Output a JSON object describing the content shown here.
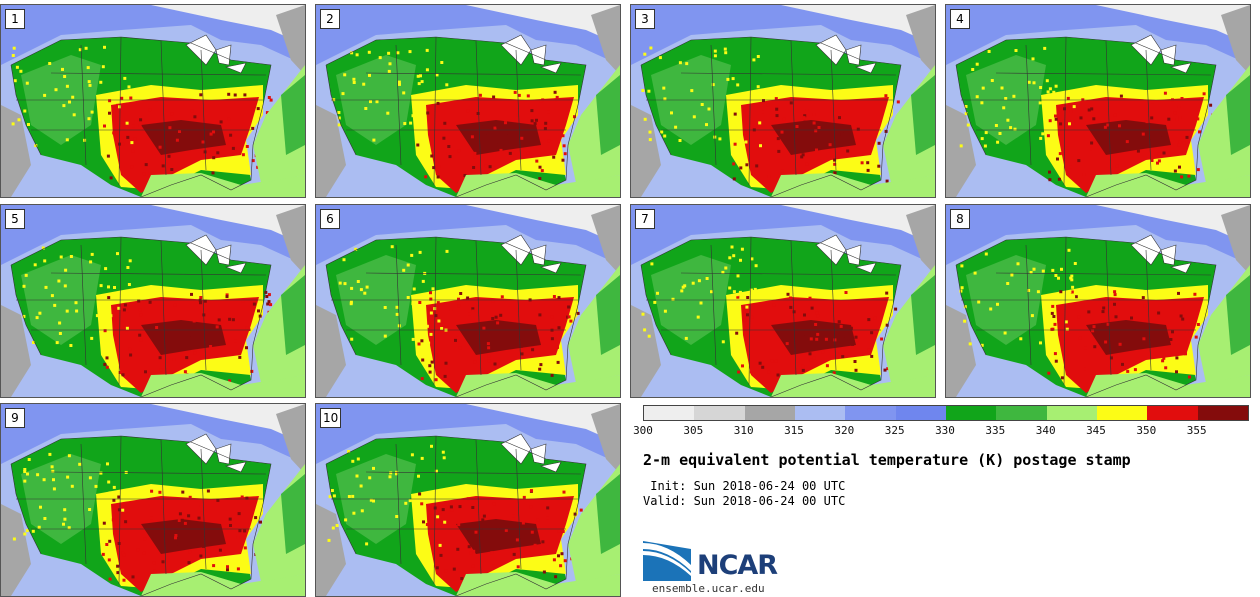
{
  "panels": [
    {
      "label": "1"
    },
    {
      "label": "2"
    },
    {
      "label": "3"
    },
    {
      "label": "4"
    },
    {
      "label": "5"
    },
    {
      "label": "6"
    },
    {
      "label": "7"
    },
    {
      "label": "8"
    },
    {
      "label": "9"
    },
    {
      "label": "10"
    }
  ],
  "colorbar": {
    "colors": [
      "#eeeeee",
      "#d6d6d6",
      "#a6a6a6",
      "#abbdf2",
      "#8095f0",
      "#6f86ee",
      "#11a51a",
      "#3fb73f",
      "#a7ef72",
      "#fcfc16",
      "#e10d0d",
      "#840c0c"
    ],
    "ticks": [
      "300",
      "305",
      "310",
      "315",
      "320",
      "325",
      "330",
      "335",
      "340",
      "345",
      "350",
      "355"
    ]
  },
  "title": "2-m equivalent potential temperature (K) postage stamp",
  "init": " Init: Sun 2018-06-24 00 UTC",
  "valid": "Valid: Sun 2018-06-24 00 UTC",
  "logo": {
    "name": "NCAR"
  },
  "url": "ensemble.ucar.edu"
}
